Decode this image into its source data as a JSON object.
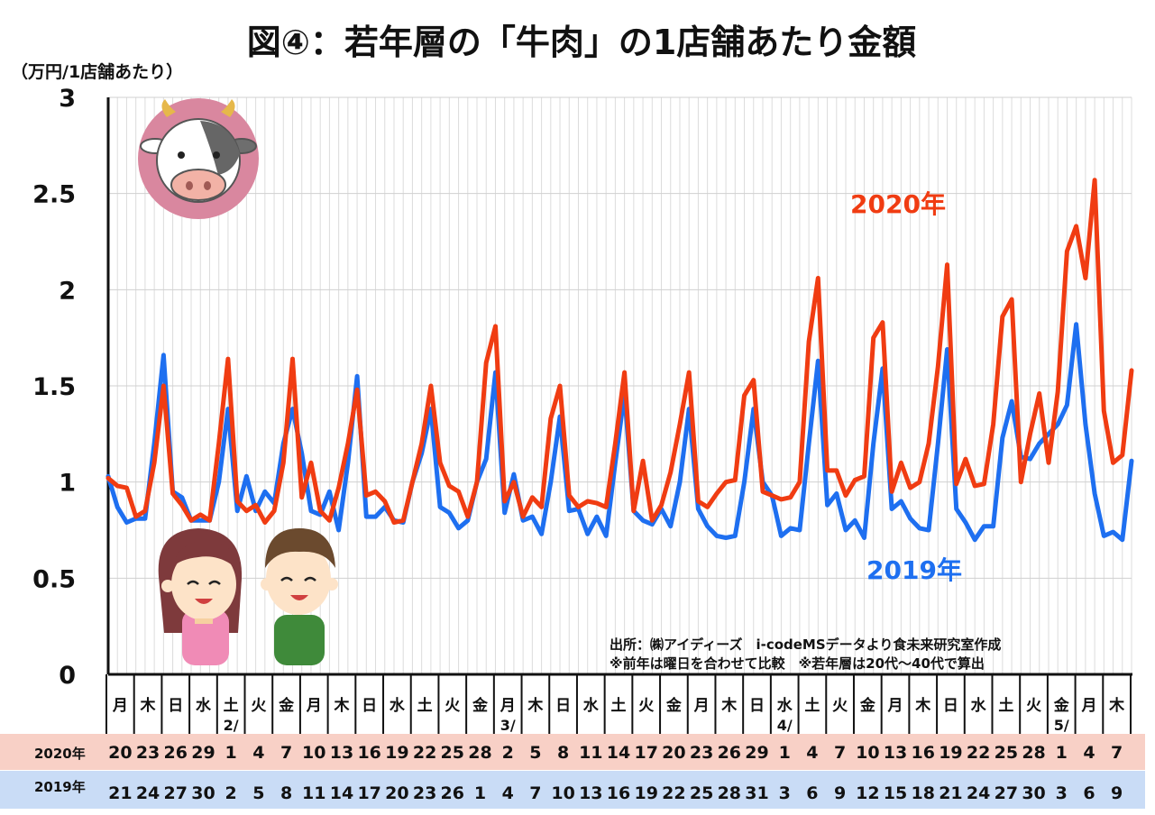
{
  "chart_data": {
    "type": "line",
    "title": "図④：若年層の「牛肉」の1店舗あたり金額",
    "ylabel": "（万円/1店舗あたり）",
    "ylim": [
      0,
      3
    ],
    "yticks": [
      "0",
      "0.5",
      "1",
      "1.5",
      "2",
      "2.5",
      "3"
    ],
    "grid": true,
    "series": [
      {
        "name": "2020年",
        "color": "#f03c12",
        "values": [
          1.02,
          0.98,
          0.97,
          0.82,
          0.85,
          1.1,
          1.5,
          0.94,
          0.88,
          0.8,
          0.83,
          0.8,
          1.2,
          1.64,
          0.9,
          0.85,
          0.88,
          0.79,
          0.85,
          1.1,
          1.64,
          0.92,
          1.1,
          0.85,
          0.8,
          0.97,
          1.2,
          1.48,
          0.93,
          0.95,
          0.9,
          0.79,
          0.8,
          1.0,
          1.2,
          1.5,
          1.1,
          0.98,
          0.95,
          0.82,
          1.0,
          1.62,
          1.81,
          0.9,
          1.0,
          0.82,
          0.92,
          0.87,
          1.33,
          1.5,
          0.93,
          0.87,
          0.9,
          0.89,
          0.87,
          1.2,
          1.57,
          0.85,
          1.11,
          0.8,
          0.88,
          1.05,
          1.3,
          1.57,
          0.9,
          0.87,
          0.94,
          1.0,
          1.01,
          1.45,
          1.53,
          0.95,
          0.93,
          0.91,
          0.92,
          1.0,
          1.73,
          2.06,
          1.06,
          1.06,
          0.93,
          1.01,
          1.03,
          1.75,
          1.83,
          0.95,
          1.1,
          0.97,
          1.0,
          1.2,
          1.6,
          2.13,
          0.99,
          1.12,
          0.98,
          0.99,
          1.3,
          1.86,
          1.95,
          1.0,
          1.25,
          1.46,
          1.1,
          1.47,
          2.2,
          2.33,
          2.06,
          2.57,
          1.37,
          1.1,
          1.14,
          1.58
        ]
      },
      {
        "name": "2019年",
        "color": "#1e6ff0",
        "values": [
          1.03,
          0.87,
          0.79,
          0.81,
          0.81,
          1.2,
          1.66,
          0.95,
          0.92,
          0.8,
          0.8,
          0.8,
          1.0,
          1.38,
          0.85,
          1.03,
          0.85,
          0.95,
          0.89,
          1.2,
          1.38,
          1.15,
          0.85,
          0.83,
          0.95,
          0.75,
          1.1,
          1.55,
          0.82,
          0.82,
          0.87,
          0.8,
          0.79,
          1.0,
          1.15,
          1.38,
          0.87,
          0.84,
          0.76,
          0.8,
          1.0,
          1.12,
          1.57,
          0.84,
          1.04,
          0.8,
          0.82,
          0.73,
          1.0,
          1.34,
          0.85,
          0.86,
          0.73,
          0.82,
          0.72,
          1.1,
          1.46,
          0.85,
          0.8,
          0.78,
          0.86,
          0.77,
          1.0,
          1.38,
          0.86,
          0.77,
          0.72,
          0.71,
          0.72,
          1.0,
          1.38,
          1.0,
          0.93,
          0.72,
          0.76,
          0.75,
          1.2,
          1.63,
          0.88,
          0.94,
          0.75,
          0.8,
          0.71,
          1.2,
          1.59,
          0.86,
          0.9,
          0.81,
          0.76,
          0.75,
          1.2,
          1.69,
          0.86,
          0.79,
          0.7,
          0.77,
          0.77,
          1.23,
          1.42,
          1.13,
          1.12,
          1.2,
          1.25,
          1.3,
          1.4,
          1.82,
          1.3,
          0.94,
          0.72,
          0.74,
          0.7,
          1.11
        ]
      }
    ],
    "weekday_labels": [
      "月",
      "木",
      "日",
      "水",
      "土",
      "火",
      "金",
      "月",
      "木",
      "日",
      "水",
      "土",
      "火",
      "金",
      "月",
      "木",
      "日",
      "水",
      "土",
      "火",
      "金",
      "月",
      "木",
      "日",
      "水",
      "土",
      "火",
      "金",
      "月",
      "木",
      "日",
      "水",
      "土",
      "火",
      "金",
      "月",
      "木"
    ],
    "month_labels": [
      {
        "col": 4,
        "text": "2/"
      },
      {
        "col": 14,
        "text": "3/"
      },
      {
        "col": 24,
        "text": "4/"
      },
      {
        "col": 34,
        "text": "5/"
      }
    ],
    "dates_2020": [
      "20",
      "23",
      "26",
      "29",
      "1",
      "4",
      "7",
      "10",
      "13",
      "16",
      "19",
      "22",
      "25",
      "28",
      "2",
      "5",
      "8",
      "11",
      "14",
      "17",
      "20",
      "23",
      "26",
      "29",
      "1",
      "4",
      "7",
      "10",
      "13",
      "16",
      "19",
      "22",
      "25",
      "28",
      "1",
      "4",
      "7"
    ],
    "dates_2019": [
      "21",
      "24",
      "27",
      "30",
      "2",
      "5",
      "8",
      "11",
      "14",
      "17",
      "20",
      "23",
      "26",
      "1",
      "4",
      "7",
      "10",
      "13",
      "16",
      "19",
      "22",
      "25",
      "28",
      "31",
      "3",
      "6",
      "9",
      "12",
      "15",
      "18",
      "21",
      "24",
      "27",
      "30",
      "3",
      "6",
      "9"
    ],
    "row_label_2020": "2020年",
    "row_label_2019": "2019年",
    "legend_2020": "2020年",
    "legend_2019": "2019年",
    "source_note_1": "出所：㈱アイディーズ　i-codeMSデータより食未来研究室作成",
    "source_note_2": "※前年は曜日を合わせて比較　※若年層は20代～40代で算出"
  }
}
